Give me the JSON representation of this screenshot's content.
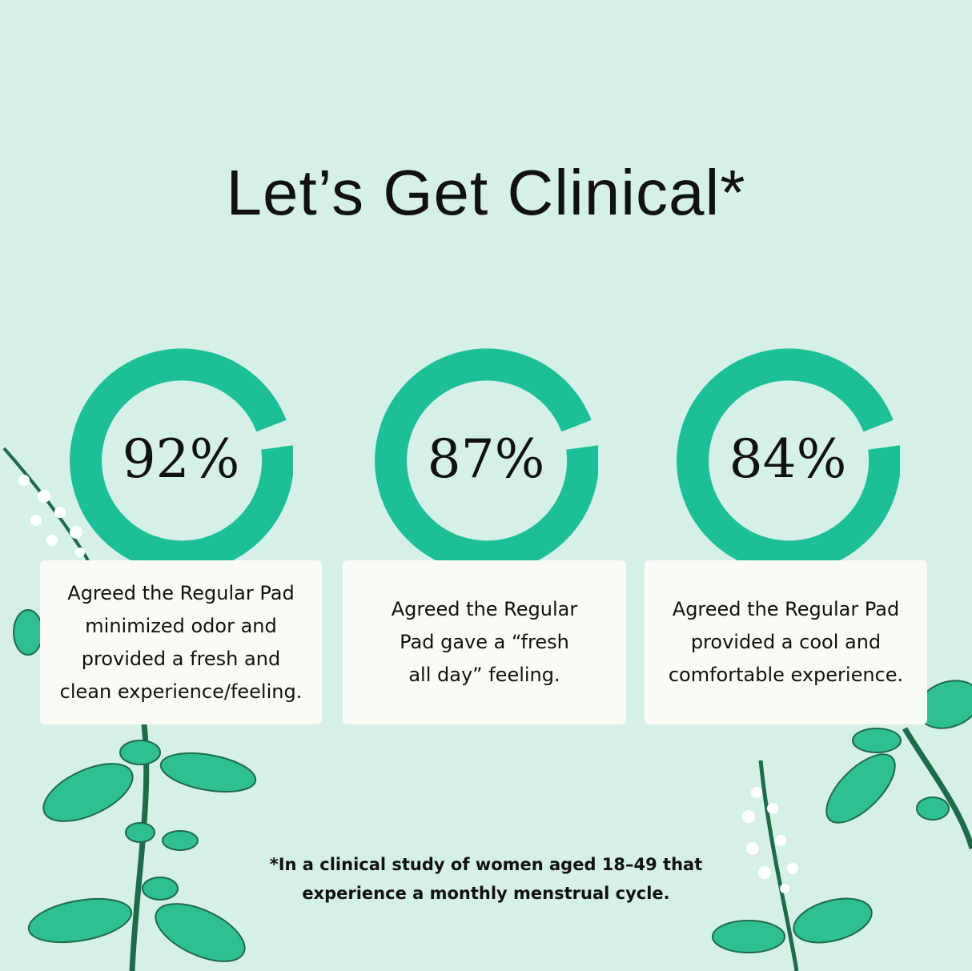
{
  "title": "Let’s Get Clinical*",
  "colors": {
    "background": "#d5f0e6",
    "ring": "#1dbf98",
    "card": "#fbfaf4",
    "leaf": "#2fbf93",
    "stem": "#1e6b4a"
  },
  "stats": [
    {
      "value": "92%",
      "text": "Agreed the Regular Pad\nminimized odor and\nprovided a fresh and\nclean experience/feeling."
    },
    {
      "value": "87%",
      "text": "Agreed the Regular\nPad gave a “fresh\nall day” feeling."
    },
    {
      "value": "84%",
      "text": "Agreed the Regular Pad\nprovided a cool and\ncomfortable experience."
    }
  ],
  "footnote": "*In a clinical study of women aged 18–49 that\nexperience a monthly menstrual cycle."
}
